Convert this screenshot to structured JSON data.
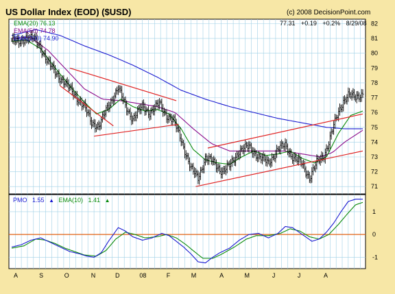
{
  "title": "US Dollar Index (EOD) ($USD)",
  "copyright": "(c) 2008 DecisionPoint.com",
  "quote": {
    "last": "77.31",
    "change": "+0.19",
    "change_pct": "+0.2%",
    "date": "8/29/08"
  },
  "legend": [
    {
      "label": "EMA(20) 76.13",
      "color": "#0a8a0a"
    },
    {
      "label": "EMA(50) 74.78",
      "color": "#8a0a8a"
    },
    {
      "label": "EMA(200) 74.90",
      "color": "#1a1ad0"
    }
  ],
  "pmo_legend": {
    "pmo_label": "PMO",
    "pmo_value": "1.55",
    "pmo_color": "#1a1ad0",
    "ema_label": "EMA(10)",
    "ema_value": "1.41",
    "ema_color": "#0a8a0a"
  },
  "chart_data": [
    {
      "type": "line",
      "title": "US Dollar Index (EOD) ($USD)",
      "x_tick_labels": [
        "A",
        "S",
        "O",
        "N",
        "D",
        "08",
        "F",
        "M",
        "A",
        "M",
        "J",
        "J",
        "A"
      ],
      "x_tick_index": [
        0,
        21,
        42,
        64,
        84,
        105,
        126,
        147,
        170,
        191,
        213,
        234,
        256
      ],
      "y_tick_labels": [
        "71",
        "72",
        "73",
        "74",
        "75",
        "76",
        "77",
        "78",
        "79",
        "80",
        "81",
        "82"
      ],
      "ylim": [
        70.5,
        82.3
      ],
      "grid": true,
      "price_keypoints": [
        [
          0,
          80.9
        ],
        [
          6,
          80.7
        ],
        [
          12,
          81.1
        ],
        [
          18,
          81.0
        ],
        [
          24,
          80.4
        ],
        [
          30,
          79.4
        ],
        [
          36,
          78.7
        ],
        [
          44,
          78.0
        ],
        [
          52,
          77.2
        ],
        [
          60,
          76.4
        ],
        [
          66,
          75.3
        ],
        [
          72,
          75.1
        ],
        [
          78,
          76.1
        ],
        [
          88,
          77.7
        ],
        [
          94,
          76.4
        ],
        [
          100,
          75.6
        ],
        [
          108,
          76.4
        ],
        [
          114,
          76.0
        ],
        [
          122,
          76.6
        ],
        [
          128,
          75.8
        ],
        [
          134,
          75.4
        ],
        [
          140,
          74.2
        ],
        [
          148,
          72.2
        ],
        [
          154,
          71.6
        ],
        [
          160,
          72.9
        ],
        [
          166,
          72.7
        ],
        [
          174,
          72.0
        ],
        [
          180,
          72.4
        ],
        [
          188,
          73.4
        ],
        [
          196,
          73.7
        ],
        [
          204,
          73.0
        ],
        [
          212,
          72.6
        ],
        [
          220,
          73.5
        ],
        [
          226,
          73.8
        ],
        [
          232,
          73.0
        ],
        [
          240,
          72.5
        ],
        [
          246,
          71.6
        ],
        [
          252,
          72.6
        ],
        [
          258,
          73.1
        ],
        [
          262,
          74.0
        ],
        [
          266,
          75.1
        ],
        [
          270,
          76.0
        ],
        [
          274,
          76.8
        ],
        [
          278,
          77.2
        ],
        [
          284,
          77.0
        ],
        [
          290,
          77.3
        ]
      ],
      "series": [
        {
          "name": "EMA(20)",
          "color": "#0a8a0a",
          "keypoints": [
            [
              0,
              80.8
            ],
            [
              12,
              80.9
            ],
            [
              24,
              80.3
            ],
            [
              36,
              79.0
            ],
            [
              48,
              77.8
            ],
            [
              60,
              76.7
            ],
            [
              70,
              75.9
            ],
            [
              80,
              76.2
            ],
            [
              90,
              76.9
            ],
            [
              100,
              76.4
            ],
            [
              110,
              76.1
            ],
            [
              120,
              76.2
            ],
            [
              130,
              75.9
            ],
            [
              140,
              74.9
            ],
            [
              150,
              73.5
            ],
            [
              160,
              72.8
            ],
            [
              170,
              72.6
            ],
            [
              180,
              72.5
            ],
            [
              190,
              73.0
            ],
            [
              200,
              73.4
            ],
            [
              210,
              73.1
            ],
            [
              220,
              73.2
            ],
            [
              230,
              73.4
            ],
            [
              240,
              72.9
            ],
            [
              250,
              72.6
            ],
            [
              260,
              73.0
            ],
            [
              270,
              74.6
            ],
            [
              280,
              75.8
            ],
            [
              290,
              76.1
            ]
          ]
        },
        {
          "name": "EMA(50)",
          "color": "#8a0a8a",
          "keypoints": [
            [
              0,
              81.0
            ],
            [
              15,
              81.1
            ],
            [
              30,
              80.2
            ],
            [
              45,
              78.9
            ],
            [
              60,
              77.6
            ],
            [
              75,
              76.9
            ],
            [
              90,
              76.8
            ],
            [
              105,
              76.6
            ],
            [
              120,
              76.4
            ],
            [
              135,
              76.0
            ],
            [
              150,
              74.9
            ],
            [
              165,
              73.9
            ],
            [
              180,
              73.4
            ],
            [
              195,
              73.4
            ],
            [
              210,
              73.4
            ],
            [
              225,
              73.4
            ],
            [
              240,
              73.2
            ],
            [
              255,
              73.0
            ],
            [
              265,
              73.3
            ],
            [
              275,
              74.0
            ],
            [
              290,
              74.8
            ]
          ]
        },
        {
          "name": "EMA(200)",
          "color": "#1a1ad0",
          "keypoints": [
            [
              0,
              81.2
            ],
            [
              20,
              81.6
            ],
            [
              40,
              81.2
            ],
            [
              60,
              80.5
            ],
            [
              80,
              79.9
            ],
            [
              100,
              79.2
            ],
            [
              120,
              78.4
            ],
            [
              140,
              77.5
            ],
            [
              160,
              76.9
            ],
            [
              180,
              76.4
            ],
            [
              200,
              76.0
            ],
            [
              220,
              75.6
            ],
            [
              240,
              75.3
            ],
            [
              260,
              75.0
            ],
            [
              275,
              74.9
            ],
            [
              290,
              74.9
            ]
          ]
        }
      ],
      "trendlines": [
        {
          "color": "#e02020",
          "from": [
            48,
            79.0
          ],
          "to": [
            136,
            76.8
          ]
        },
        {
          "color": "#e02020",
          "from": [
            68,
            74.4
          ],
          "to": [
            138,
            75.2
          ]
        },
        {
          "color": "#e02020",
          "from": [
            152,
            71.0
          ],
          "to": [
            290,
            73.4
          ]
        },
        {
          "color": "#e02020",
          "from": [
            162,
            73.6
          ],
          "to": [
            290,
            75.9
          ]
        },
        {
          "color": "#e02020",
          "from": [
            40,
            77.8
          ],
          "to": [
            84,
            75.1
          ]
        }
      ]
    },
    {
      "type": "line",
      "title": "PMO",
      "y_tick_labels": [
        "-1",
        "0",
        "1"
      ],
      "ylim": [
        -1.5,
        1.75
      ],
      "zero_line_color": "#e06010",
      "series": [
        {
          "name": "PMO",
          "color": "#1a1ad0",
          "keypoints": [
            [
              0,
              -0.55
            ],
            [
              8,
              -0.45
            ],
            [
              16,
              -0.25
            ],
            [
              24,
              -0.15
            ],
            [
              32,
              -0.35
            ],
            [
              40,
              -0.55
            ],
            [
              48,
              -0.75
            ],
            [
              56,
              -0.85
            ],
            [
              62,
              -0.95
            ],
            [
              68,
              -1.0
            ],
            [
              74,
              -0.8
            ],
            [
              80,
              -0.3
            ],
            [
              88,
              0.3
            ],
            [
              94,
              0.15
            ],
            [
              100,
              -0.1
            ],
            [
              108,
              -0.25
            ],
            [
              116,
              -0.15
            ],
            [
              124,
              0.05
            ],
            [
              130,
              -0.05
            ],
            [
              136,
              -0.3
            ],
            [
              142,
              -0.55
            ],
            [
              148,
              -0.85
            ],
            [
              154,
              -1.2
            ],
            [
              160,
              -1.25
            ],
            [
              166,
              -1.0
            ],
            [
              172,
              -0.8
            ],
            [
              180,
              -0.6
            ],
            [
              188,
              -0.25
            ],
            [
              196,
              0.0
            ],
            [
              204,
              0.05
            ],
            [
              212,
              -0.15
            ],
            [
              220,
              0.05
            ],
            [
              226,
              0.35
            ],
            [
              232,
              0.3
            ],
            [
              240,
              0.0
            ],
            [
              248,
              -0.3
            ],
            [
              254,
              -0.2
            ],
            [
              260,
              0.1
            ],
            [
              266,
              0.5
            ],
            [
              272,
              1.0
            ],
            [
              278,
              1.45
            ],
            [
              284,
              1.55
            ],
            [
              290,
              1.55
            ]
          ]
        },
        {
          "name": "EMA(10)",
          "color": "#0a8a0a",
          "keypoints": [
            [
              0,
              -0.6
            ],
            [
              10,
              -0.5
            ],
            [
              20,
              -0.2
            ],
            [
              28,
              -0.25
            ],
            [
              36,
              -0.4
            ],
            [
              44,
              -0.6
            ],
            [
              52,
              -0.75
            ],
            [
              60,
              -0.9
            ],
            [
              70,
              -0.95
            ],
            [
              78,
              -0.7
            ],
            [
              86,
              -0.2
            ],
            [
              94,
              0.1
            ],
            [
              102,
              0.0
            ],
            [
              110,
              -0.15
            ],
            [
              120,
              -0.1
            ],
            [
              128,
              0.0
            ],
            [
              136,
              -0.15
            ],
            [
              144,
              -0.45
            ],
            [
              152,
              -0.8
            ],
            [
              158,
              -1.05
            ],
            [
              166,
              -1.05
            ],
            [
              174,
              -0.85
            ],
            [
              184,
              -0.55
            ],
            [
              194,
              -0.2
            ],
            [
              202,
              -0.05
            ],
            [
              212,
              -0.05
            ],
            [
              222,
              0.05
            ],
            [
              230,
              0.25
            ],
            [
              238,
              0.15
            ],
            [
              246,
              -0.1
            ],
            [
              254,
              -0.2
            ],
            [
              262,
              0.0
            ],
            [
              270,
              0.45
            ],
            [
              278,
              0.95
            ],
            [
              284,
              1.3
            ],
            [
              290,
              1.41
            ]
          ]
        }
      ]
    }
  ]
}
